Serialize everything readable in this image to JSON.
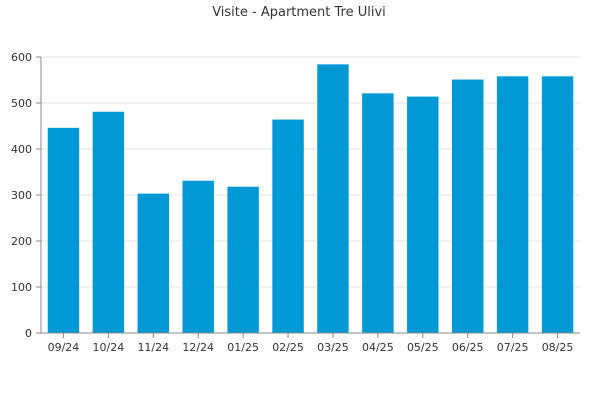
{
  "chart_data": {
    "type": "bar",
    "title": "Visite - Apartment Tre Ulivi",
    "xlabel": "",
    "ylabel": "",
    "categories": [
      "09/24",
      "10/24",
      "11/24",
      "12/24",
      "01/25",
      "02/25",
      "03/25",
      "04/25",
      "05/25",
      "06/25",
      "07/25",
      "08/25"
    ],
    "values": [
      446,
      481,
      303,
      331,
      318,
      464,
      584,
      521,
      514,
      551,
      558,
      558
    ],
    "ylim": [
      0,
      600
    ],
    "yticks": [
      0,
      100,
      200,
      300,
      400,
      500,
      600
    ],
    "grid": true,
    "legend": "none",
    "bar_color": "#0099d6"
  }
}
